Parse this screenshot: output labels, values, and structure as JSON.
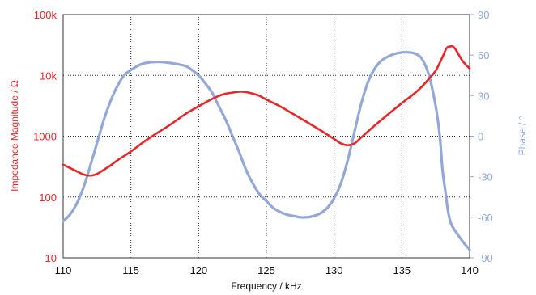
{
  "chart_data": {
    "type": "line",
    "xlabel": "Frequency / kHz",
    "ylabel_left": "Impedance Magnitude / Ω",
    "ylabel_right": "Phase / °",
    "xlim": [
      110,
      140
    ],
    "x_ticks": [
      "110",
      "115",
      "120",
      "125",
      "130",
      "135",
      "140"
    ],
    "ylim_left": [
      10,
      100000
    ],
    "y_scale_left": "log",
    "y_ticks_left": [
      "10",
      "100",
      "1000",
      "10k",
      "100k"
    ],
    "ylim_right": [
      -90,
      90
    ],
    "y_ticks_right": [
      "-90",
      "-60",
      "-30",
      "0",
      "30",
      "60",
      "90"
    ],
    "grid": true,
    "colors": {
      "impedance": "#e8262a",
      "phase": "#93a8d8",
      "left_axis_text": "#e8262a",
      "right_axis_text": "#93a8d8",
      "grid": "#333333"
    },
    "series": [
      {
        "axis": "left",
        "color": "#e8262a",
        "x": [
          110,
          110.5,
          111,
          111.5,
          112,
          112.5,
          113,
          113.5,
          114,
          115,
          116,
          117,
          118,
          119,
          120,
          121,
          121.5,
          122,
          122.5,
          123,
          123.5,
          124,
          124.5,
          125,
          126,
          127,
          128,
          129,
          130,
          130.5,
          131,
          131.5,
          132,
          133,
          134,
          135,
          136,
          136.5,
          137,
          137.5,
          138,
          138.3,
          138.6,
          138.8,
          139,
          139.5,
          140
        ],
        "y": [
          340,
          300,
          265,
          235,
          225,
          240,
          280,
          330,
          400,
          560,
          820,
          1150,
          1600,
          2300,
          3100,
          4100,
          4600,
          5000,
          5200,
          5400,
          5300,
          5000,
          4600,
          4000,
          3100,
          2300,
          1700,
          1250,
          900,
          760,
          710,
          760,
          950,
          1500,
          2300,
          3500,
          5200,
          6600,
          8800,
          12000,
          20000,
          28000,
          30000,
          29500,
          26000,
          17000,
          13000
        ]
      },
      {
        "axis": "right",
        "color": "#93a8d8",
        "x": [
          110,
          110.5,
          111,
          111.5,
          112,
          112.5,
          113,
          113.5,
          114,
          114.5,
          115,
          115.5,
          116,
          117,
          118,
          119,
          119.5,
          120,
          120.5,
          121,
          121.5,
          122,
          122.5,
          123,
          123.5,
          124,
          124.5,
          125,
          125.5,
          126,
          126.5,
          127,
          127.5,
          128,
          128.5,
          129,
          129.5,
          130,
          130.5,
          131,
          131.5,
          132,
          132.5,
          133,
          133.5,
          134,
          134.5,
          135,
          135.5,
          136,
          136.5,
          137,
          137.5,
          137.8,
          138,
          138.2,
          138.4,
          138.6,
          138.8,
          139,
          139.5,
          140
        ],
        "y": [
          -63,
          -58,
          -50,
          -38,
          -22,
          -5,
          12,
          26,
          37,
          45,
          49,
          52,
          54,
          55,
          54,
          52,
          49,
          45,
          39,
          32,
          22,
          12,
          0,
          -12,
          -25,
          -35,
          -43,
          -48,
          -53,
          -56,
          -58,
          -59,
          -60,
          -60,
          -59,
          -57,
          -53,
          -46,
          -35,
          -18,
          3,
          24,
          40,
          50,
          56,
          59,
          61,
          62,
          62,
          61,
          57,
          45,
          22,
          0,
          -25,
          -40,
          -55,
          -64,
          -68,
          -71,
          -78,
          -84
        ]
      }
    ]
  }
}
